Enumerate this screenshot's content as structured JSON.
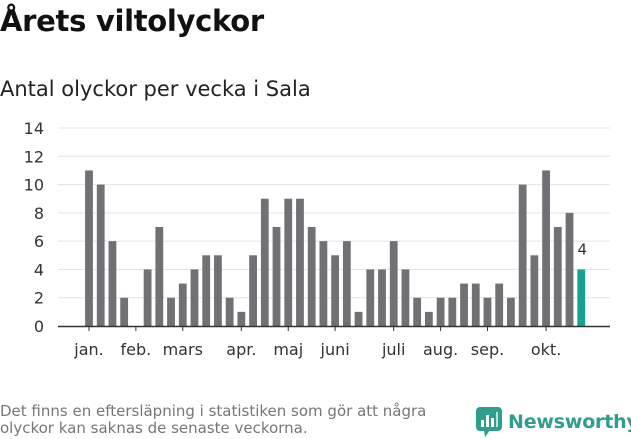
{
  "title": "Årets viltolyckor",
  "subtitle": "Antal olyckor per vecka i Sala",
  "footnote": "Det finns en eftersläpning i statistiken som gör att några olyckor kan saknas de senaste veckorna.",
  "brand": {
    "name": "Newsworthy",
    "icon": "newsworthy-logo-icon"
  },
  "colors": {
    "bar": "#717074",
    "highlight": "#17a192",
    "grid": "#e3e3e3",
    "axis": "#333333",
    "brand": "#2f9e8c"
  },
  "chart_data": {
    "type": "bar",
    "title": "Antal olyckor per vecka i Sala",
    "xlabel": "",
    "ylabel": "",
    "ylim": [
      0,
      14
    ],
    "yticks": [
      0,
      2,
      4,
      6,
      8,
      10,
      12,
      14
    ],
    "grid": true,
    "weeks": [
      1,
      2,
      3,
      4,
      5,
      6,
      7,
      8,
      9,
      10,
      11,
      12,
      13,
      14,
      15,
      16,
      17,
      18,
      19,
      20,
      21,
      22,
      23,
      24,
      25,
      26,
      27,
      28,
      29,
      30,
      31,
      32,
      33,
      34,
      35,
      36,
      37,
      38,
      39,
      40,
      41,
      42,
      43
    ],
    "values": [
      11,
      10,
      6,
      2,
      0,
      4,
      7,
      2,
      3,
      4,
      5,
      5,
      2,
      1,
      5,
      9,
      7,
      9,
      9,
      7,
      6,
      5,
      6,
      1,
      4,
      4,
      6,
      4,
      2,
      1,
      2,
      2,
      3,
      3,
      2,
      3,
      2,
      10,
      5,
      11,
      7,
      8,
      4
    ],
    "highlight_index": 42,
    "highlight_label": "4",
    "month_ticks": [
      {
        "label": "jan.",
        "week": 1
      },
      {
        "label": "feb.",
        "week": 5
      },
      {
        "label": "mars",
        "week": 9
      },
      {
        "label": "apr.",
        "week": 14
      },
      {
        "label": "maj",
        "week": 18
      },
      {
        "label": "juni",
        "week": 22
      },
      {
        "label": "juli",
        "week": 27
      },
      {
        "label": "aug.",
        "week": 31
      },
      {
        "label": "sep.",
        "week": 35
      },
      {
        "label": "okt.",
        "week": 40
      }
    ]
  }
}
